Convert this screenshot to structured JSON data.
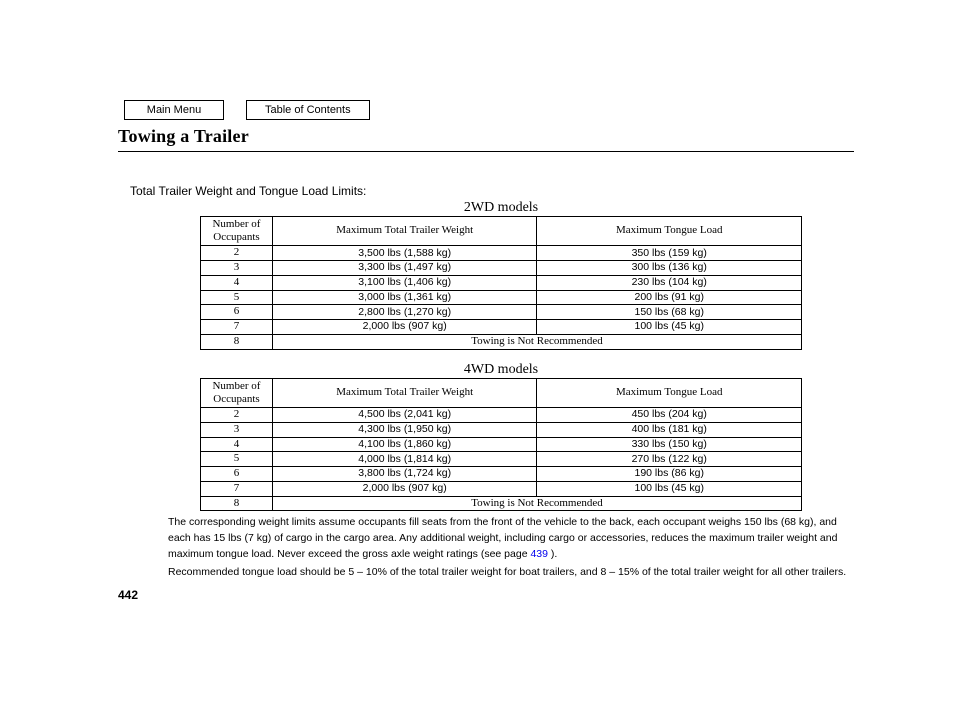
{
  "nav": {
    "main_menu": "Main Menu",
    "toc": "Table of Contents"
  },
  "title": "Towing a Trailer",
  "section_subtitle": "Total Trailer Weight and Tongue Load Limits:",
  "tables": {
    "columns": {
      "occupants_l1": "Number of",
      "occupants_l2": "Occupants",
      "max_trailer": "Maximum Total Trailer Weight",
      "max_tongue": "Maximum Tongue Load"
    },
    "not_recommended": "Towing is Not Recommended",
    "twd": {
      "caption": "2WD models",
      "rows": [
        {
          "occ": "2",
          "w": "3,500 lbs (1,588 kg)",
          "t": "350 lbs (159 kg)"
        },
        {
          "occ": "3",
          "w": "3,300 lbs (1,497 kg)",
          "t": "300 lbs (136 kg)"
        },
        {
          "occ": "4",
          "w": "3,100 lbs (1,406 kg)",
          "t": "230 lbs (104 kg)"
        },
        {
          "occ": "5",
          "w": "3,000 lbs (1,361 kg)",
          "t": "200 lbs (91 kg)"
        },
        {
          "occ": "6",
          "w": "2,800 lbs (1,270 kg)",
          "t": "150 lbs (68 kg)"
        },
        {
          "occ": "7",
          "w": "2,000 lbs (907 kg)",
          "t": "100 lbs (45 kg)"
        }
      ],
      "last_occ": "8"
    },
    "fourwd": {
      "caption": "4WD models",
      "rows": [
        {
          "occ": "2",
          "w": "4,500 lbs (2,041 kg)",
          "t": "450 lbs (204 kg)"
        },
        {
          "occ": "3",
          "w": "4,300 lbs (1,950 kg)",
          "t": "400 lbs (181 kg)"
        },
        {
          "occ": "4",
          "w": "4,100 lbs (1,860 kg)",
          "t": "330 lbs (150 kg)"
        },
        {
          "occ": "5",
          "w": "4,000 lbs (1,814 kg)",
          "t": "270 lbs (122 kg)"
        },
        {
          "occ": "6",
          "w": "3,800 lbs (1,724 kg)",
          "t": "190 lbs (86 kg)"
        },
        {
          "occ": "7",
          "w": "2,000 lbs (907 kg)",
          "t": "100 lbs (45 kg)"
        }
      ],
      "last_occ": "8"
    }
  },
  "footnotes": {
    "p1a": "The corresponding weight limits assume occupants fill seats from the front of the vehicle to the back, each occupant weighs 150 lbs (68 kg), and each has 15 lbs (7 kg) of cargo in the cargo area. Any additional weight, including cargo or accessories, reduces the maximum trailer weight and maximum tongue load. Never exceed the gross axle weight ratings (see page ",
    "p1_link": "439",
    "p1b": " ).",
    "p2": "Recommended tongue load should be 5 – 10% of the total trailer weight for boat trailers, and 8 – 15% of the total trailer weight for all other trailers."
  },
  "page_number": "442",
  "style": {
    "background": "#ffffff",
    "text_color": "#000000",
    "link_color": "#0000ee",
    "border_color": "#000000",
    "body_font": "Arial, Helvetica, sans-serif",
    "serif_font": "\"Times New Roman\", Times, serif",
    "title_fontsize": 18,
    "caption_fontsize": 14,
    "table_fontsize": 11,
    "footnote_fontsize": 10.5
  }
}
